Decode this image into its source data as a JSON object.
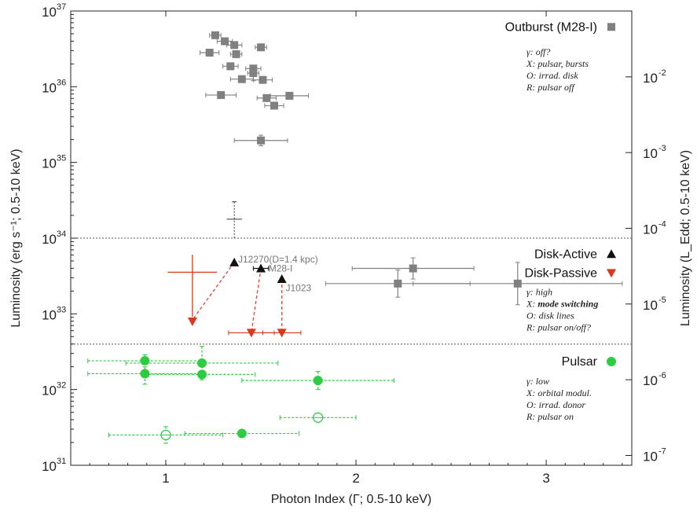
{
  "chart_data": {
    "type": "scatter",
    "title": "",
    "xlabel": "Photon Index (Γ; 0.5-10 keV)",
    "ylabel_left": "Luminosity (erg s⁻¹; 0.5-10 keV)",
    "ylabel_right": "Luminosity (L_Edd; 0.5-10 keV)",
    "xlim": [
      0.5,
      3.45
    ],
    "ylim_log10": [
      31,
      37
    ],
    "y_scale": "log",
    "x_ticks": [
      {
        "v": 1,
        "label": "1"
      },
      {
        "v": 2,
        "label": "2"
      },
      {
        "v": 3,
        "label": "3"
      }
    ],
    "y_ticks_left": [
      {
        "e": 31,
        "base": "10",
        "exp": "31"
      },
      {
        "e": 32,
        "base": "10",
        "exp": "32"
      },
      {
        "e": 33,
        "base": "10",
        "exp": "33"
      },
      {
        "e": 34,
        "base": "10",
        "exp": "34"
      },
      {
        "e": 35,
        "base": "10",
        "exp": "35"
      },
      {
        "e": 36,
        "base": "10",
        "exp": "36"
      },
      {
        "e": 37,
        "base": "10",
        "exp": "37"
      }
    ],
    "y_ticks_right": [
      {
        "e": 31.13,
        "base": "10",
        "exp": "-7"
      },
      {
        "e": 32.13,
        "base": "10",
        "exp": "-6"
      },
      {
        "e": 33.13,
        "base": "10",
        "exp": "-5"
      },
      {
        "e": 34.13,
        "base": "10",
        "exp": "-4"
      },
      {
        "e": 35.13,
        "base": "10",
        "exp": "-3"
      },
      {
        "e": 36.13,
        "base": "10",
        "exp": "-2"
      }
    ],
    "boundaries_log10": [
      34.0,
      32.6
    ],
    "series": [
      {
        "name": "Outburst (M28-I)",
        "marker": "square",
        "color": "#808080",
        "points": [
          {
            "x": 1.26,
            "ylog": 36.68,
            "xerr": 0.03
          },
          {
            "x": 1.31,
            "ylog": 36.6,
            "xerr": 0.04
          },
          {
            "x": 1.36,
            "ylog": 36.55,
            "xerr": 0.04
          },
          {
            "x": 1.23,
            "ylog": 36.45,
            "xerr": 0.05
          },
          {
            "x": 1.37,
            "ylog": 36.43,
            "xerr": 0.03
          },
          {
            "x": 1.5,
            "ylog": 36.52,
            "xerr": 0.03
          },
          {
            "x": 1.34,
            "ylog": 36.27,
            "xerr": 0.04
          },
          {
            "x": 1.46,
            "ylog": 36.24,
            "xerr": 0.04
          },
          {
            "x": 1.46,
            "ylog": 36.18,
            "xerr": 0.03,
            "yerr": 0.1
          },
          {
            "x": 1.4,
            "ylog": 36.1,
            "xerr": 0.06
          },
          {
            "x": 1.51,
            "ylog": 36.09,
            "xerr": 0.05
          },
          {
            "x": 1.29,
            "ylog": 35.89,
            "xerr": 0.08
          },
          {
            "x": 1.53,
            "ylog": 35.85,
            "xerr": 0.05
          },
          {
            "x": 1.65,
            "ylog": 35.88,
            "xerr": 0.1
          },
          {
            "x": 1.57,
            "ylog": 35.75,
            "xerr": 0.05
          },
          {
            "x": 1.5,
            "ylog": 35.29,
            "xerr": 0.14,
            "yerr": 0.07
          },
          {
            "x": 2.3,
            "ylog": 33.6,
            "xerr": 0.32,
            "yerr": 0.14
          },
          {
            "x": 2.22,
            "ylog": 33.4,
            "xerr": 0.38,
            "yerr": 0.18
          },
          {
            "x": 2.85,
            "ylog": 33.4,
            "xerr": 0.55,
            "yerr": 0.28
          }
        ]
      },
      {
        "name": "Disk-Active",
        "marker": "triangle-up",
        "color": "#111111",
        "points": [
          {
            "x": 1.36,
            "ylog": 33.68
          },
          {
            "x": 1.5,
            "ylog": 33.6,
            "xerr": 0.04
          },
          {
            "x": 1.61,
            "ylog": 33.46
          }
        ],
        "upper_point": {
          "x": 1.36,
          "ylog": 34.25,
          "xerr": 0.04,
          "ylo": 34.0,
          "yhi": 34.48
        }
      },
      {
        "name": "Disk-Passive",
        "marker": "triangle-down",
        "color": "#d9381e",
        "points": [
          {
            "x": 1.14,
            "ylog": 32.9
          },
          {
            "x": 1.45,
            "ylog": 32.75,
            "xerr": 0.12
          },
          {
            "x": 1.61,
            "ylog": 32.75,
            "xerr": 0.1
          }
        ],
        "upper_limit_bar": {
          "x": 1.14,
          "ylog": 33.55,
          "xerr": 0.13,
          "ytop": 33.78
        }
      },
      {
        "name": "Pulsar",
        "marker": "circle",
        "color": "#2ecc40",
        "points": [
          {
            "x": 0.89,
            "ylog": 32.38,
            "xerr": 0.3,
            "yerr": 0.08
          },
          {
            "x": 1.19,
            "ylog": 32.35,
            "xerr": 0.4,
            "yerr": 0.22
          },
          {
            "x": 0.89,
            "ylog": 32.21,
            "xerr": 0.3,
            "yerr": 0.14
          },
          {
            "x": 1.19,
            "ylog": 32.2,
            "xerr": 0.28
          },
          {
            "x": 1.8,
            "ylog": 32.12,
            "xerr": 0.4,
            "yerr": 0.12
          },
          {
            "x": 1.4,
            "ylog": 31.42,
            "xerr": 0.3
          },
          {
            "x": 1.0,
            "ylog": 31.4,
            "xerr": 0.3,
            "yerr": 0.11,
            "open": true
          },
          {
            "x": 1.8,
            "ylog": 31.63,
            "xerr": 0.2,
            "open": true
          }
        ]
      }
    ],
    "connectors": [
      {
        "from": [
          1.36,
          33.68
        ],
        "to": [
          1.14,
          32.92
        ]
      },
      {
        "from": [
          1.5,
          33.6
        ],
        "to": [
          1.45,
          32.76
        ]
      },
      {
        "from": [
          1.61,
          33.46
        ],
        "to": [
          1.61,
          32.76
        ]
      }
    ],
    "point_labels": [
      {
        "text": "J12270(D=1.4 kpc)",
        "x": 1.38,
        "ylog": 33.72
      },
      {
        "text": "M28-I",
        "x": 1.54,
        "ylog": 33.6
      },
      {
        "text": "J1023",
        "x": 1.63,
        "ylog": 33.34
      }
    ],
    "legend": [
      {
        "label": "Outburst (M28-I)",
        "marker": "square",
        "color": "#808080",
        "ylog": 36.8
      },
      {
        "label": "Disk-Active",
        "marker": "triangle-up",
        "color": "#111111",
        "ylog": 33.8
      },
      {
        "label": "Disk-Passive",
        "marker": "triangle-down",
        "color": "#d9381e",
        "ylog": 33.55
      },
      {
        "label": "Pulsar",
        "marker": "circle",
        "color": "#2ecc40",
        "ylog": 32.38
      }
    ],
    "annotations": [
      {
        "ylog": 36.42,
        "lines": [
          {
            "t": "γ: off?"
          },
          {
            "t": "X: pulsar, bursts"
          },
          {
            "t": "O: irrad. disk"
          },
          {
            "t": "R: pulsar off"
          }
        ]
      },
      {
        "ylog": 33.25,
        "lines": [
          {
            "t": "γ: high"
          },
          {
            "pre": "X: ",
            "b": "mode switching"
          },
          {
            "t": "O: disk lines"
          },
          {
            "t": "R: pulsar on/off?"
          }
        ]
      },
      {
        "ylog": 32.07,
        "lines": [
          {
            "t": "γ: low"
          },
          {
            "t": "X: orbital modul."
          },
          {
            "t": "O: irrad. donor"
          },
          {
            "t": "R: pulsar on"
          }
        ]
      }
    ]
  }
}
